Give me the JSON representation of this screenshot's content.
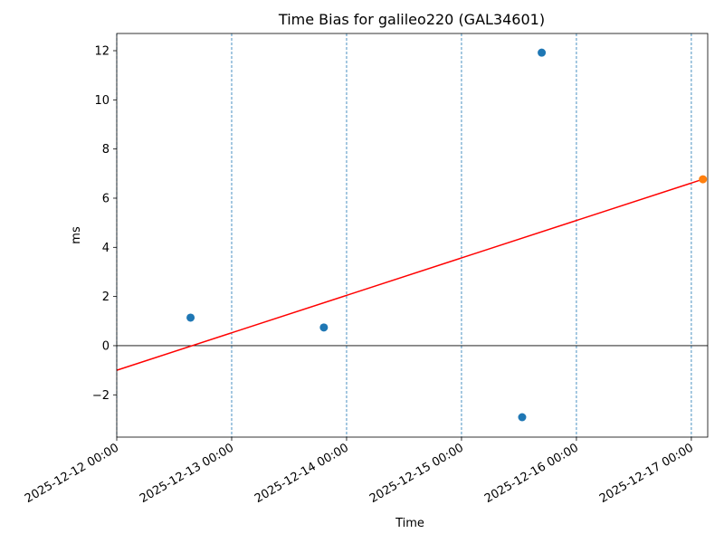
{
  "chart_data": {
    "type": "scatter",
    "title": "Time Bias for galileo220 (GAL34601)",
    "xlabel": "Time",
    "ylabel": "ms",
    "xlim": [
      "2025-12-12 00:00",
      "2025-12-17 03:25"
    ],
    "xticks": [
      "2025-12-12 00:00",
      "2025-12-13 00:00",
      "2025-12-14 00:00",
      "2025-12-15 00:00",
      "2025-12-16 00:00",
      "2025-12-17 00:00"
    ],
    "ylim": [
      -3.72,
      12.7
    ],
    "yticks": [
      {
        "value": -2,
        "label": "−2"
      },
      0,
      2,
      4,
      6,
      8,
      10,
      12
    ],
    "grid": "x",
    "axhline": 0,
    "series": [
      {
        "style": "marker",
        "color": "#1f77b4",
        "x": [
          "2025-12-12 15:25",
          "2025-12-13 19:15",
          "2025-12-15 12:40",
          "2025-12-15 16:45"
        ],
        "values": [
          1.14,
          0.74,
          -2.91,
          11.92
        ]
      },
      {
        "style": "line",
        "color": "#ff0000",
        "x": [
          "2025-12-12 00:00",
          "2025-12-17 02:25"
        ],
        "values": [
          -1.0,
          6.77
        ]
      },
      {
        "style": "marker",
        "color": "#ff7f0e",
        "x": [
          "2025-12-17 02:25"
        ],
        "values": [
          6.77
        ]
      }
    ]
  }
}
